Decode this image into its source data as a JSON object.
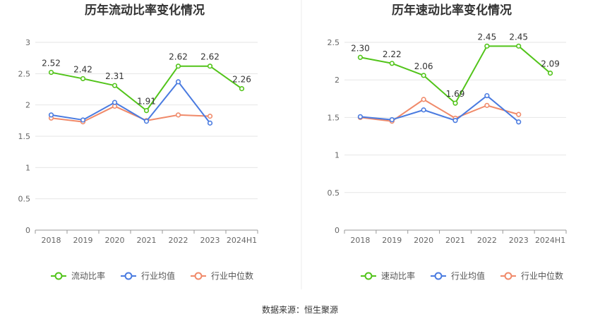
{
  "colors": {
    "current": "#52c41a",
    "avg": "#4a7be0",
    "median": "#f08a6a"
  },
  "chart_data": [
    {
      "type": "line",
      "title": "历年流动比率变化情况",
      "categories": [
        "2018",
        "2019",
        "2020",
        "2021",
        "2022",
        "2023",
        "2024H1"
      ],
      "ylim": [
        0,
        3
      ],
      "yticks": [
        0,
        0.5,
        1,
        1.5,
        2,
        2.5,
        3
      ],
      "ytick_labels": [
        "0",
        "0.5",
        "1",
        "1.5",
        "2",
        "2.5",
        "3"
      ],
      "grid": true,
      "legend_position": "bottom",
      "series": [
        {
          "name": "流动比率",
          "key": "current",
          "values": [
            2.52,
            2.42,
            2.31,
            1.91,
            2.62,
            2.62,
            2.26
          ],
          "labels": [
            "2.52",
            "2.42",
            "2.31",
            "1.91",
            "2.62",
            "2.62",
            "2.26"
          ]
        },
        {
          "name": "行业均值",
          "key": "avg",
          "values": [
            1.84,
            1.76,
            2.04,
            1.74,
            2.37,
            1.71,
            null
          ]
        },
        {
          "name": "行业中位数",
          "key": "median",
          "values": [
            1.79,
            1.73,
            1.98,
            1.75,
            1.84,
            1.82,
            null
          ]
        }
      ]
    },
    {
      "type": "line",
      "title": "历年速动比率变化情况",
      "categories": [
        "2018",
        "2019",
        "2020",
        "2021",
        "2022",
        "2023",
        "2024H1"
      ],
      "ylim": [
        0,
        2.5
      ],
      "yticks": [
        0,
        0.5,
        1,
        1.5,
        2,
        2.5
      ],
      "ytick_labels": [
        "0",
        "0.5",
        "1",
        "1.5",
        "2",
        "2.5"
      ],
      "grid": true,
      "legend_position": "bottom",
      "series": [
        {
          "name": "速动比率",
          "key": "current",
          "values": [
            2.3,
            2.22,
            2.06,
            1.69,
            2.45,
            2.45,
            2.09
          ],
          "labels": [
            "2.30",
            "2.22",
            "2.06",
            "1.69",
            "2.45",
            "2.45",
            "2.09"
          ]
        },
        {
          "name": "行业均值",
          "key": "avg",
          "values": [
            1.51,
            1.47,
            1.6,
            1.46,
            1.79,
            1.44,
            null
          ]
        },
        {
          "name": "行业中位数",
          "key": "median",
          "values": [
            1.5,
            1.45,
            1.74,
            1.49,
            1.66,
            1.54,
            null
          ]
        }
      ]
    }
  ],
  "source": "数据来源：恒生聚源"
}
